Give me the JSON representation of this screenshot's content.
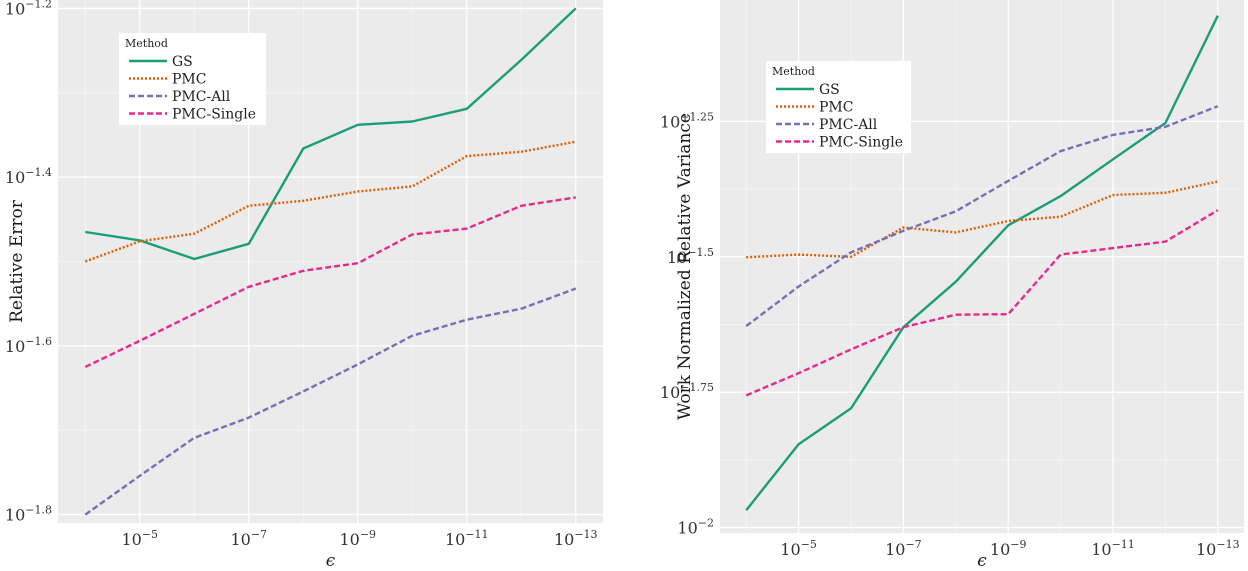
{
  "chart_data": [
    {
      "type": "line",
      "xlabel": "ϵ",
      "ylabel": "Relative Error",
      "x": [
        4,
        5,
        6,
        7,
        8,
        9,
        10,
        11,
        12,
        13
      ],
      "x_ticks": [
        {
          "x": 5,
          "base": "10",
          "exp": "−5"
        },
        {
          "x": 7,
          "base": "10",
          "exp": "−7"
        },
        {
          "x": 9,
          "base": "10",
          "exp": "−9"
        },
        {
          "x": 11,
          "base": "10",
          "exp": "−11"
        },
        {
          "x": 13,
          "base": "10",
          "exp": "−13"
        }
      ],
      "x_scale": "log",
      "xlim": [
        3.5,
        13.5
      ],
      "y_scale": "log",
      "ylim": [
        -1.81,
        -1.19
      ],
      "y_ticks": [
        {
          "y": -1.2,
          "base": "10",
          "exp": "−1.2"
        },
        {
          "y": -1.4,
          "base": "10",
          "exp": "−1.4"
        },
        {
          "y": -1.6,
          "base": "10",
          "exp": "−1.6"
        },
        {
          "y": -1.8,
          "base": "10",
          "exp": "−1.8"
        }
      ],
      "grid": true,
      "legend": {
        "title": "Method",
        "placement": "top-left"
      },
      "series": [
        {
          "name": "GS",
          "color": "#1b9e77",
          "dash": "solid",
          "values": [
            -1.465,
            -1.475,
            -1.497,
            -1.479,
            -1.366,
            -1.338,
            -1.334,
            -1.319,
            -1.261,
            -1.2
          ]
        },
        {
          "name": "PMC",
          "color": "#d95f02",
          "dash": "dotted",
          "values": [
            -1.5,
            -1.476,
            -1.467,
            -1.434,
            -1.428,
            -1.417,
            -1.411,
            -1.375,
            -1.37,
            -1.358
          ]
        },
        {
          "name": "PMC-All",
          "color": "#7570b3",
          "dash": "dashed",
          "values": [
            -1.8,
            -1.754,
            -1.709,
            -1.685,
            -1.654,
            -1.622,
            -1.588,
            -1.569,
            -1.556,
            -1.532
          ]
        },
        {
          "name": "PMC-Single",
          "color": "#e7298a",
          "dash": "dashed",
          "values": [
            -1.625,
            -1.594,
            -1.562,
            -1.53,
            -1.511,
            -1.502,
            -1.468,
            -1.461,
            -1.434,
            -1.424
          ]
        }
      ]
    },
    {
      "type": "line",
      "xlabel": "ϵ",
      "ylabel": "Work Normalized Relative Variance",
      "x": [
        4,
        5,
        6,
        7,
        8,
        9,
        10,
        11,
        12,
        13
      ],
      "x_ticks": [
        {
          "x": 5,
          "base": "10",
          "exp": "−5"
        },
        {
          "x": 7,
          "base": "10",
          "exp": "−7"
        },
        {
          "x": 9,
          "base": "10",
          "exp": "−9"
        },
        {
          "x": 11,
          "base": "10",
          "exp": "−11"
        },
        {
          "x": 13,
          "base": "10",
          "exp": "−13"
        }
      ],
      "x_scale": "log",
      "xlim": [
        3.5,
        13.5
      ],
      "y_scale": "log",
      "ylim": [
        -2.01,
        -1.026
      ],
      "y_ticks": [
        {
          "y": -1.25,
          "base": "10",
          "exp": "−1.25"
        },
        {
          "y": -1.5,
          "base": "10",
          "exp": "−1.5"
        },
        {
          "y": -1.75,
          "base": "10",
          "exp": "−1.75"
        },
        {
          "y": -2.0,
          "base": "10",
          "exp": "−2"
        }
      ],
      "grid": true,
      "legend": {
        "title": "Method",
        "placement": "top-left"
      },
      "series": [
        {
          "name": "GS",
          "color": "#1b9e77",
          "dash": "solid",
          "values": [
            -1.968,
            -1.846,
            -1.78,
            -1.63,
            -1.546,
            -1.442,
            -1.388,
            -1.32,
            -1.253,
            -1.055
          ]
        },
        {
          "name": "PMC",
          "color": "#d95f02",
          "dash": "dotted",
          "values": [
            -1.501,
            -1.496,
            -1.5,
            -1.446,
            -1.455,
            -1.434,
            -1.426,
            -1.386,
            -1.382,
            -1.361
          ]
        },
        {
          "name": "PMC-All",
          "color": "#7570b3",
          "dash": "dashed",
          "values": [
            -1.628,
            -1.555,
            -1.492,
            -1.452,
            -1.416,
            -1.36,
            -1.305,
            -1.275,
            -1.26,
            -1.222
          ]
        },
        {
          "name": "PMC-Single",
          "color": "#e7298a",
          "dash": "dashed",
          "values": [
            -1.756,
            -1.715,
            -1.671,
            -1.63,
            -1.607,
            -1.606,
            -1.496,
            -1.484,
            -1.472,
            -1.414
          ]
        }
      ]
    }
  ]
}
